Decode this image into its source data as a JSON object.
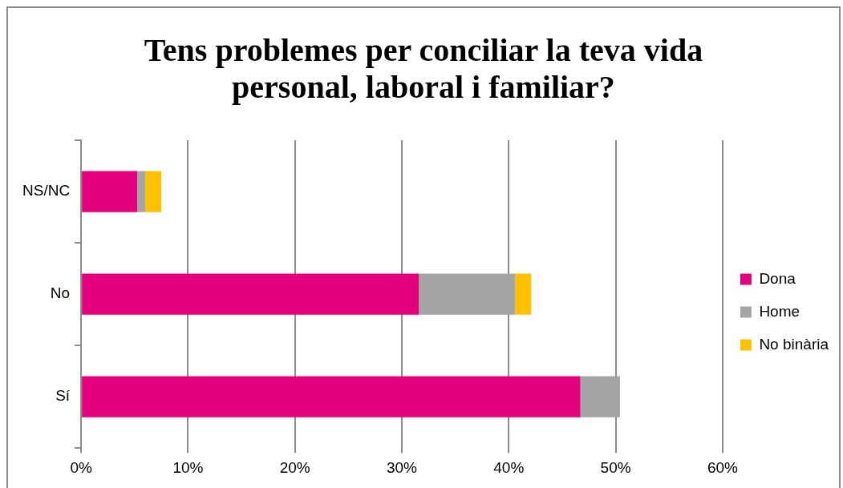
{
  "chart_data": {
    "type": "bar",
    "orientation": "horizontal",
    "stacked": true,
    "title": "Tens problemes per conciliar la teva vida personal, laboral i familiar?",
    "categories": [
      "NS/NC",
      "No",
      "Sí"
    ],
    "series": [
      {
        "name": "Dona",
        "color": "#e4007c",
        "values": [
          5.25,
          31.6,
          46.7
        ]
      },
      {
        "name": "Home",
        "color": "#a5a5a5",
        "values": [
          0.75,
          9.0,
          3.7
        ]
      },
      {
        "name": "No binària",
        "color": "#ffc000",
        "values": [
          1.5,
          1.5,
          null
        ]
      }
    ],
    "xlim": [
      0,
      60
    ],
    "xticks": [
      {
        "value": 0,
        "label": "0%"
      },
      {
        "value": 10,
        "label": "10%"
      },
      {
        "value": 20,
        "label": "20%"
      },
      {
        "value": 30,
        "label": "30%"
      },
      {
        "value": 40,
        "label": "40%"
      },
      {
        "value": 50,
        "label": "50%"
      },
      {
        "value": 60,
        "label": "60%"
      }
    ],
    "grid": "x",
    "legend": "right"
  }
}
